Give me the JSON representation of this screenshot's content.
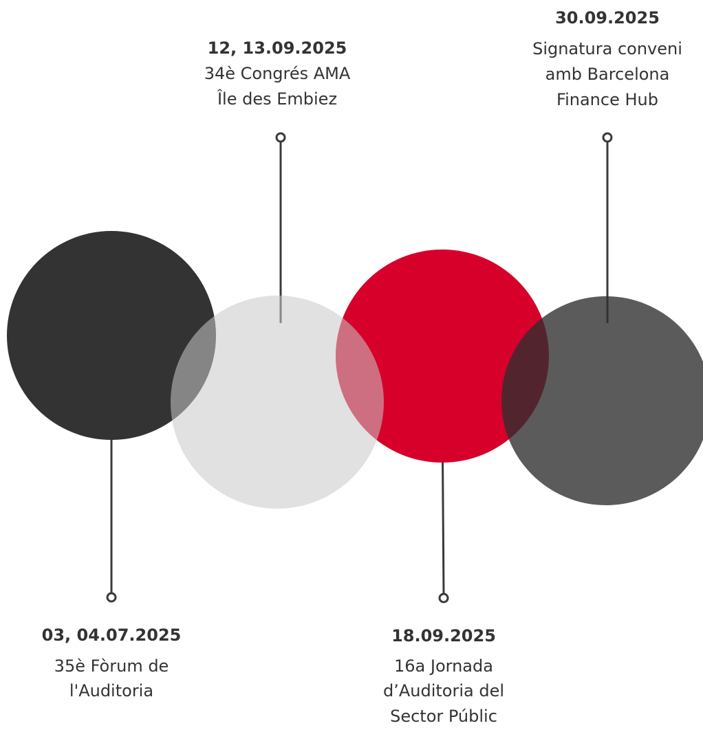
{
  "events": [
    {
      "date": "03, 04.07.2025",
      "lines": [
        "35è Fòrum de",
        "l'Auditoria"
      ]
    },
    {
      "date": "12, 13.09.2025",
      "lines": [
        "34è Congrés AMA",
        "Île des Embiez"
      ]
    },
    {
      "date": "18.09.2025",
      "lines": [
        "16a Jornada",
        "d’Auditoria del",
        "Sector Públic"
      ]
    },
    {
      "date": "30.09.2025",
      "lines": [
        "Signatura conveni",
        "amb Barcelona",
        "Finance Hub"
      ]
    }
  ]
}
